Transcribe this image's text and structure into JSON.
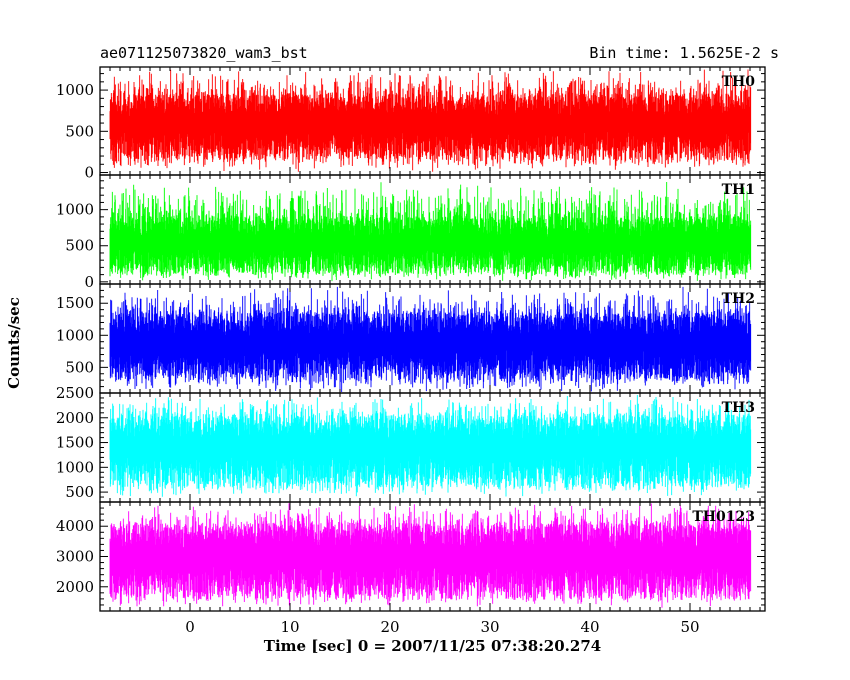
{
  "header": {
    "title": "ae071125073820_wam3_bst",
    "bin_time": "Bin time: 1.5625E-2 s"
  },
  "chart_data": {
    "type": "line",
    "xlabel": "Time [sec] 0 = 2007/11/25 07:38:20.274",
    "ylabel": "Counts/sec",
    "xlim": [
      -9,
      57.5
    ],
    "x_ticks": [
      0,
      10,
      20,
      30,
      40,
      50
    ],
    "x_tick_labels": [
      "0",
      "10",
      "20",
      "30",
      "40",
      "50"
    ],
    "data_x_range": [
      -8,
      56
    ],
    "bin_time_sec": 0.015625,
    "panels": [
      {
        "name": "TH0",
        "color": "#ff0000",
        "ylim": [
          -30,
          1280
        ],
        "y_ticks": [
          0,
          500,
          1000
        ],
        "y_tick_labels": [
          "0",
          "500",
          "1000"
        ],
        "typical_range": [
          150,
          950
        ],
        "min": 0,
        "max": 1280
      },
      {
        "name": "TH1",
        "color": "#00ff00",
        "ylim": [
          -30,
          1480
        ],
        "y_ticks": [
          0,
          500,
          1000
        ],
        "y_tick_labels": [
          "0",
          "500",
          "1000"
        ],
        "typical_range": [
          100,
          900
        ],
        "min": 0,
        "max": 1400
      },
      {
        "name": "TH2",
        "color": "#0000ff",
        "ylim": [
          100,
          1800
        ],
        "y_ticks": [
          500,
          1000,
          1500
        ],
        "y_tick_labels": [
          "500",
          "1000",
          "1500"
        ],
        "typical_range": [
          300,
          1350
        ],
        "min": 100,
        "max": 1780
      },
      {
        "name": "TH3",
        "color": "#00ffff",
        "ylim": [
          300,
          2500
        ],
        "y_ticks": [
          500,
          1000,
          1500,
          2000,
          2500
        ],
        "y_tick_labels": [
          "500",
          "1000",
          "1500",
          "2000",
          "2500"
        ],
        "typical_range": [
          600,
          2050
        ],
        "min": 380,
        "max": 2500
      },
      {
        "name": "TH0123",
        "color": "#ff00ff",
        "ylim": [
          1200,
          4800
        ],
        "y_ticks": [
          2000,
          3000,
          4000
        ],
        "y_tick_labels": [
          "2000",
          "3000",
          "4000"
        ],
        "typical_range": [
          1600,
          4100
        ],
        "min": 1300,
        "max": 4800
      }
    ]
  }
}
